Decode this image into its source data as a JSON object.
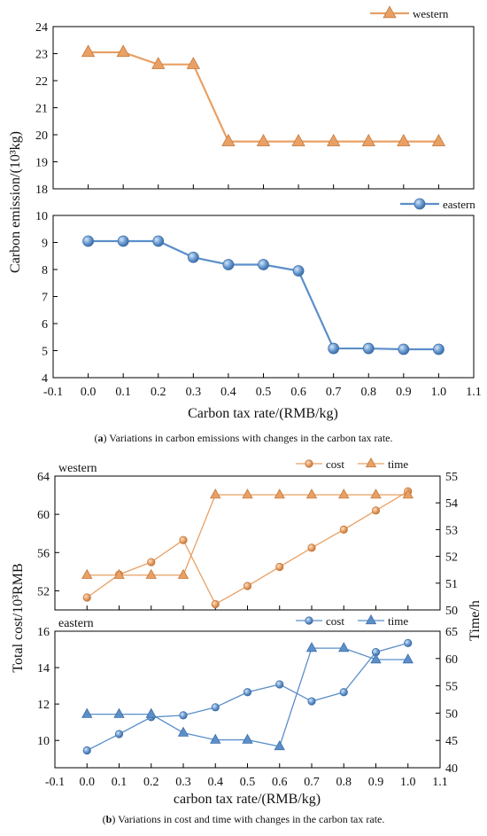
{
  "captions": {
    "a_prefix": "(",
    "a_letter": "a",
    "a_text": ") Variations in carbon emissions with changes in the carbon tax rate.",
    "b_prefix": "(",
    "b_letter": "b",
    "b_text": ") Variations in cost and time with changes in the carbon tax rate."
  },
  "chart_data": [
    {
      "id": "a_top",
      "type": "line",
      "legend": [
        "western"
      ],
      "series": [
        {
          "name": "western",
          "marker": "triangle",
          "color": "#E9A064",
          "x": [
            0.0,
            0.1,
            0.2,
            0.3,
            0.4,
            0.5,
            0.6,
            0.7,
            0.8,
            0.9,
            1.0
          ],
          "values": [
            23.05,
            23.05,
            22.6,
            22.6,
            19.75,
            19.75,
            19.75,
            19.75,
            19.75,
            19.75,
            19.75
          ]
        }
      ],
      "ylim": [
        18,
        24
      ],
      "yticks": [
        "18",
        "19",
        "20",
        "21",
        "22",
        "23",
        "24"
      ]
    },
    {
      "id": "a_bottom",
      "type": "line",
      "legend": [
        "eastern"
      ],
      "series": [
        {
          "name": "eastern",
          "marker": "sphere",
          "color": "#5B8FC9",
          "x": [
            0.0,
            0.1,
            0.2,
            0.3,
            0.4,
            0.5,
            0.6,
            0.7,
            0.8,
            0.9,
            1.0
          ],
          "values": [
            9.05,
            9.05,
            9.05,
            8.45,
            8.18,
            8.18,
            7.95,
            5.08,
            5.08,
            5.05,
            5.05
          ]
        }
      ],
      "ylim": [
        4,
        10
      ],
      "yticks": [
        "4",
        "5",
        "6",
        "7",
        "8",
        "9",
        "10"
      ],
      "xlim": [
        -0.1,
        1.1
      ],
      "xticks": [
        "-0.1",
        "0.0",
        "0.1",
        "0.2",
        "0.3",
        "0.4",
        "0.5",
        "0.6",
        "0.7",
        "0.8",
        "0.9",
        "1.0",
        "1.1"
      ],
      "ylabel": "Carbon emission/(10³kg)",
      "xlabel": "Carbon tax rate/(RMB/kg)"
    },
    {
      "id": "b_top",
      "type": "line",
      "region_label": "western",
      "legend": [
        "cost",
        "time"
      ],
      "series": [
        {
          "name": "cost",
          "axis": "left",
          "marker": "sphere",
          "color": "#E9A064",
          "x": [
            0.0,
            0.1,
            0.2,
            0.3,
            0.4,
            0.5,
            0.6,
            0.7,
            0.8,
            0.9,
            1.0
          ],
          "values": [
            51.3,
            53.7,
            55.0,
            57.3,
            50.6,
            52.5,
            54.5,
            56.5,
            58.4,
            60.4,
            62.4
          ]
        },
        {
          "name": "time",
          "axis": "right",
          "marker": "triangle",
          "color": "#E9A064",
          "x": [
            0.0,
            0.1,
            0.2,
            0.3,
            0.4,
            0.5,
            0.6,
            0.7,
            0.8,
            0.9,
            1.0
          ],
          "values": [
            51.3,
            51.3,
            51.3,
            51.3,
            54.3,
            54.3,
            54.3,
            54.3,
            54.3,
            54.3,
            54.3
          ]
        }
      ],
      "ylim_left": [
        50,
        64
      ],
      "yticks_left": [
        "52",
        "56",
        "60",
        "64"
      ],
      "ylim_right": [
        50,
        55
      ],
      "yticks_right": [
        "50",
        "51",
        "52",
        "53",
        "54",
        "55"
      ]
    },
    {
      "id": "b_bottom",
      "type": "line",
      "region_label": "eastern",
      "legend": [
        "cost",
        "time"
      ],
      "series": [
        {
          "name": "cost",
          "axis": "left",
          "marker": "sphere",
          "color": "#5B8FC9",
          "x": [
            0.0,
            0.1,
            0.2,
            0.3,
            0.4,
            0.5,
            0.6,
            0.7,
            0.8,
            0.9,
            1.0
          ],
          "values": [
            9.45,
            10.35,
            11.28,
            11.38,
            11.82,
            12.65,
            13.08,
            12.15,
            12.65,
            14.85,
            15.35
          ]
        },
        {
          "name": "time",
          "axis": "right",
          "marker": "triangle",
          "color": "#5B8FC9",
          "x": [
            0.0,
            0.1,
            0.2,
            0.3,
            0.4,
            0.5,
            0.6,
            0.7,
            0.8,
            0.9,
            1.0
          ],
          "values": [
            49.8,
            49.8,
            49.8,
            46.4,
            45.1,
            45.1,
            43.9,
            61.9,
            61.9,
            59.8,
            59.8
          ]
        }
      ],
      "ylim_left": [
        8.5,
        16
      ],
      "yticks_left": [
        "10",
        "12",
        "14",
        "16"
      ],
      "ylim_right": [
        40,
        65
      ],
      "yticks_right": [
        "40",
        "45",
        "50",
        "55",
        "60",
        "65"
      ],
      "xlim": [
        -0.1,
        1.1
      ],
      "xticks": [
        "-0.1",
        "0.0",
        "0.1",
        "0.2",
        "0.3",
        "0.4",
        "0.5",
        "0.6",
        "0.7",
        "0.8",
        "0.9",
        "1.0",
        "1.1"
      ],
      "ylabel_left": "Total cost/10³RMB",
      "ylabel_right": "Time/h",
      "xlabel": "carbon tax rate/(RMB/kg)"
    }
  ]
}
